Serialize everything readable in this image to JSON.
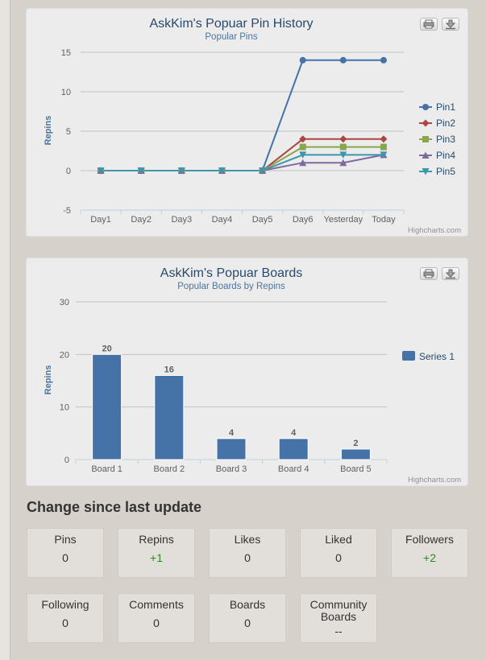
{
  "chart_data": [
    {
      "type": "line",
      "title": "AskKim's Popuar Pin History",
      "subtitle": "Popular Pins",
      "xlabel": "",
      "ylabel": "Repins",
      "categories": [
        "Day1",
        "Day2",
        "Day3",
        "Day4",
        "Day5",
        "Day6",
        "Yesterday",
        "Today"
      ],
      "ylim": [
        -5,
        15
      ],
      "yticks": [
        -5,
        0,
        5,
        10,
        15
      ],
      "grid": true,
      "legend_position": "right",
      "credits": "Highcharts.com",
      "series": [
        {
          "name": "Pin1",
          "marker": "circle",
          "color": "#4572a7",
          "values": [
            0,
            0,
            0,
            0,
            0,
            14,
            14,
            14
          ]
        },
        {
          "name": "Pin2",
          "marker": "diamond",
          "color": "#aa4643",
          "values": [
            0,
            0,
            0,
            0,
            0,
            4,
            4,
            4
          ]
        },
        {
          "name": "Pin3",
          "marker": "square",
          "color": "#89a54e",
          "values": [
            0,
            0,
            0,
            0,
            0,
            3,
            3,
            3
          ]
        },
        {
          "name": "Pin4",
          "marker": "triangle",
          "color": "#80699b",
          "values": [
            0,
            0,
            0,
            0,
            0,
            1,
            1,
            2
          ]
        },
        {
          "name": "Pin5",
          "marker": "triangle-down",
          "color": "#3d96ae",
          "values": [
            0,
            0,
            0,
            0,
            0,
            2,
            2,
            2
          ]
        }
      ]
    },
    {
      "type": "bar",
      "title": "AskKim's Popuar Boards",
      "subtitle": "Popular Boards by Repins",
      "xlabel": "",
      "ylabel": "Repins",
      "categories": [
        "Board 1",
        "Board 2",
        "Board 3",
        "Board 4",
        "Board 5"
      ],
      "ylim": [
        0,
        30
      ],
      "yticks": [
        0,
        10,
        20,
        30
      ],
      "grid": true,
      "legend_position": "right",
      "credits": "Highcharts.com",
      "series": [
        {
          "name": "Series 1",
          "color": "#4572a7",
          "values": [
            20,
            16,
            4,
            4,
            2
          ]
        }
      ]
    }
  ],
  "export_icons": [
    "print-icon",
    "download-icon"
  ],
  "stats": {
    "title": "Change since last update",
    "items": [
      {
        "label": "Pins",
        "value": "0",
        "positive": false
      },
      {
        "label": "Repins",
        "value": "+1",
        "positive": true
      },
      {
        "label": "Likes",
        "value": "0",
        "positive": false
      },
      {
        "label": "Liked",
        "value": "0",
        "positive": false
      },
      {
        "label": "Followers",
        "value": "+2",
        "positive": true
      },
      {
        "label": "Following",
        "value": "0",
        "positive": false
      },
      {
        "label": "Comments",
        "value": "0",
        "positive": false
      },
      {
        "label": "Boards",
        "value": "0",
        "positive": false
      },
      {
        "label": "Community Boards",
        "value": "--",
        "positive": false
      }
    ]
  }
}
